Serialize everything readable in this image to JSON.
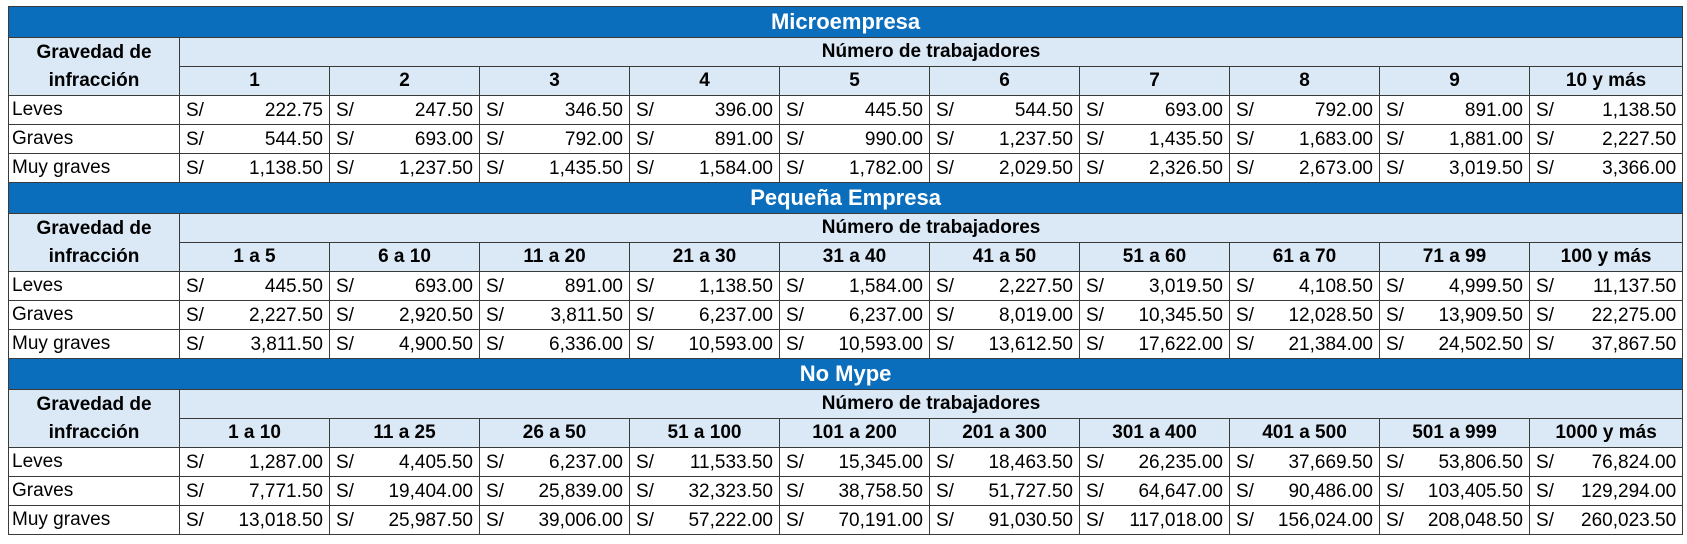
{
  "sections": [
    {
      "title": "Microempresa",
      "severity_header": "Gravedad de infracción",
      "workers_header": "Número de trabajadores",
      "columns": [
        "1",
        "2",
        "3",
        "4",
        "5",
        "6",
        "7",
        "8",
        "9",
        "10 y más"
      ],
      "rows": [
        {
          "label": "Leves",
          "values": [
            "222.75",
            "247.50",
            "346.50",
            "396.00",
            "445.50",
            "544.50",
            "693.00",
            "792.00",
            "891.00",
            "1,138.50"
          ]
        },
        {
          "label": "Graves",
          "values": [
            "544.50",
            "693.00",
            "792.00",
            "891.00",
            "990.00",
            "1,237.50",
            "1,435.50",
            "1,683.00",
            "1,881.00",
            "2,227.50"
          ]
        },
        {
          "label": "Muy graves",
          "values": [
            "1,138.50",
            "1,237.50",
            "1,435.50",
            "1,584.00",
            "1,782.00",
            "2,029.50",
            "2,326.50",
            "2,673.00",
            "3,019.50",
            "3,366.00"
          ]
        }
      ]
    },
    {
      "title": "Pequeña Empresa",
      "severity_header": "Gravedad de infracción",
      "workers_header": "Número de trabajadores",
      "columns": [
        "1 a 5",
        "6 a 10",
        "11 a 20",
        "21 a 30",
        "31 a 40",
        "41 a 50",
        "51 a 60",
        "61 a 70",
        "71 a 99",
        "100 y más"
      ],
      "rows": [
        {
          "label": "Leves",
          "values": [
            "445.50",
            "693.00",
            "891.00",
            "1,138.50",
            "1,584.00",
            "2,227.50",
            "3,019.50",
            "4,108.50",
            "4,999.50",
            "11,137.50"
          ]
        },
        {
          "label": "Graves",
          "values": [
            "2,227.50",
            "2,920.50",
            "3,811.50",
            "6,237.00",
            "6,237.00",
            "8,019.00",
            "10,345.50",
            "12,028.50",
            "13,909.50",
            "22,275.00"
          ]
        },
        {
          "label": "Muy graves",
          "values": [
            "3,811.50",
            "4,900.50",
            "6,336.00",
            "10,593.00",
            "10,593.00",
            "13,612.50",
            "17,622.00",
            "21,384.00",
            "24,502.50",
            "37,867.50"
          ]
        }
      ]
    },
    {
      "title": "No Mype",
      "severity_header": "Gravedad de infracción",
      "workers_header": "Número de trabajadores",
      "columns": [
        "1 a 10",
        "11 a 25",
        "26 a 50",
        "51 a 100",
        "101 a 200",
        "201 a 300",
        "301 a 400",
        "401 a 500",
        "501 a 999",
        "1000 y más"
      ],
      "rows": [
        {
          "label": "Leves",
          "values": [
            "1,287.00",
            "4,405.50",
            "6,237.00",
            "11,533.50",
            "15,345.00",
            "18,463.50",
            "26,235.00",
            "37,669.50",
            "53,806.50",
            "76,824.00"
          ]
        },
        {
          "label": "Graves",
          "values": [
            "7,771.50",
            "19,404.00",
            "25,839.00",
            "32,323.50",
            "38,758.50",
            "51,727.50",
            "64,647.00",
            "90,486.00",
            "103,405.50",
            "129,294.00"
          ]
        },
        {
          "label": "Muy graves",
          "values": [
            "13,018.50",
            "25,987.50",
            "39,006.00",
            "57,222.00",
            "70,191.00",
            "91,030.50",
            "117,018.00",
            "156,024.00",
            "208,048.50",
            "260,023.50"
          ]
        }
      ]
    }
  ],
  "currency_symbol": "S/",
  "colors": {
    "title_bg": "#0a6ebd",
    "header_bg": "#dbe9f6",
    "border": "#3a3a3a"
  }
}
